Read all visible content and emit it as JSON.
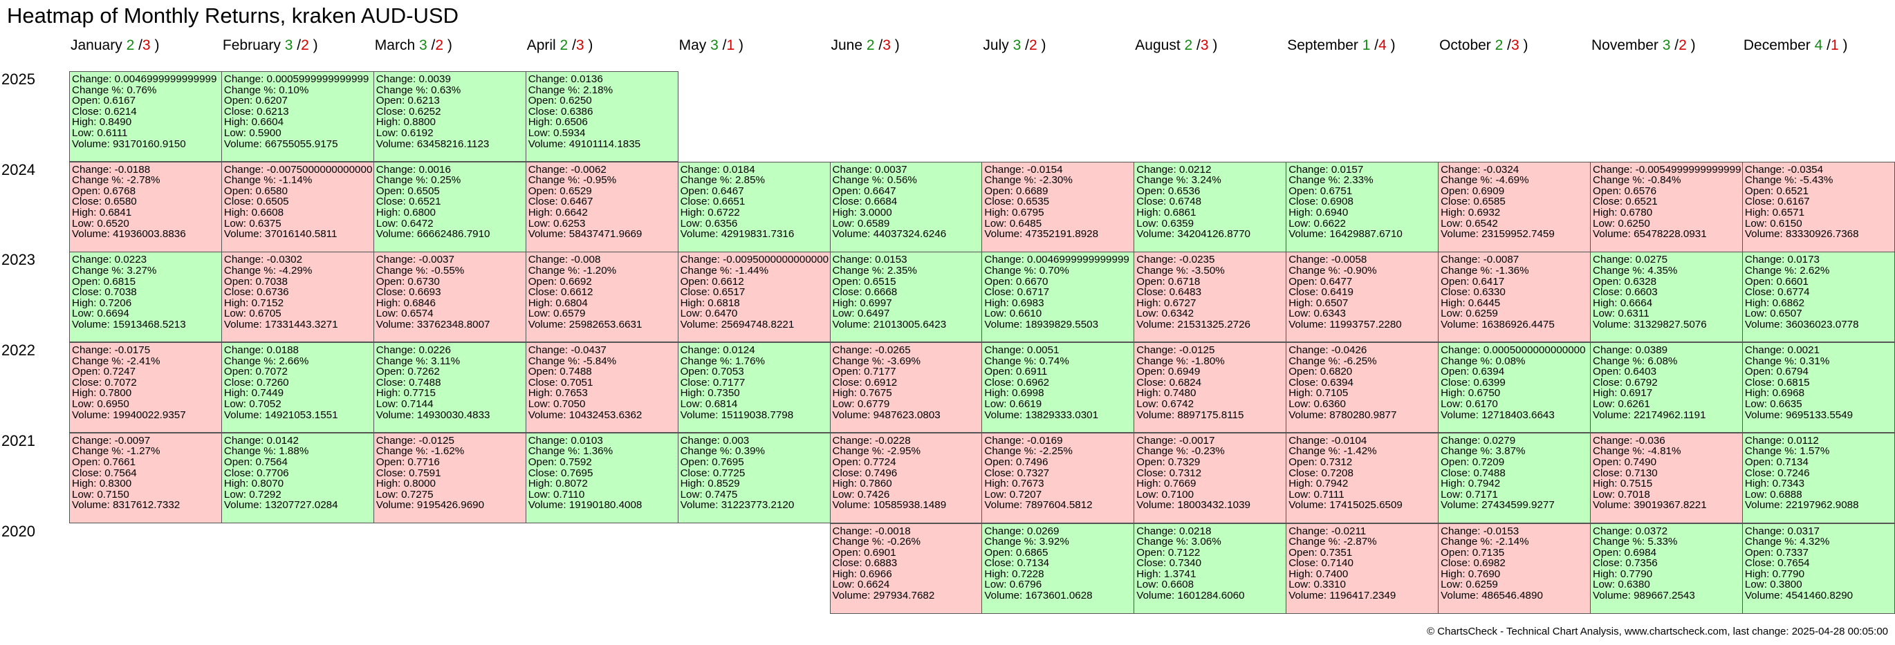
{
  "title": "Heatmap of Monthly Returns, kraken AUD-USD",
  "footer": "© ChartsCheck - Technical Chart Analysis, www.chartscheck.com, last change: 2025-04-28 00:05:00",
  "colors": {
    "up_bg": "#bfffbf",
    "down_bg": "#ffcccc",
    "up_text": "#138a13",
    "down_text": "#d60000"
  },
  "chart_data": {
    "type": "heatmap",
    "title": "Heatmap of Monthly Returns, kraken AUD-USD",
    "months": [
      {
        "name": "January",
        "up": "2",
        "down": "3"
      },
      {
        "name": "February",
        "up": "3",
        "down": "2"
      },
      {
        "name": "March",
        "up": "3",
        "down": "2"
      },
      {
        "name": "April",
        "up": "2",
        "down": "3"
      },
      {
        "name": "May",
        "up": "3",
        "down": "1"
      },
      {
        "name": "June",
        "up": "2",
        "down": "3"
      },
      {
        "name": "July",
        "up": "3",
        "down": "2"
      },
      {
        "name": "August",
        "up": "2",
        "down": "3"
      },
      {
        "name": "September",
        "up": "1",
        "down": "4"
      },
      {
        "name": "October",
        "up": "2",
        "down": "3"
      },
      {
        "name": "November",
        "up": "3",
        "down": "2"
      },
      {
        "name": "December",
        "up": "4",
        "down": "1"
      }
    ],
    "years": [
      {
        "year": "2025",
        "cells": [
          {
            "month": 0,
            "change": "0.0046999999999999",
            "pct": "0.76%",
            "open": "0.6167",
            "close": "0.6214",
            "high": "0.8490",
            "low": "0.6111",
            "volume": "93170160.9150"
          },
          {
            "month": 1,
            "change": "0.0005999999999999",
            "pct": "0.10%",
            "open": "0.6207",
            "close": "0.6213",
            "high": "0.6604",
            "low": "0.5900",
            "volume": "66755055.9175"
          },
          {
            "month": 2,
            "change": "0.0039",
            "pct": "0.63%",
            "open": "0.6213",
            "close": "0.6252",
            "high": "0.8800",
            "low": "0.6192",
            "volume": "63458216.1123"
          },
          {
            "month": 3,
            "change": "0.0136",
            "pct": "2.18%",
            "open": "0.6250",
            "close": "0.6386",
            "high": "0.6506",
            "low": "0.5934",
            "volume": "49101114.1835"
          }
        ]
      },
      {
        "year": "2024",
        "cells": [
          {
            "month": 0,
            "change": "-0.0188",
            "pct": "-2.78%",
            "open": "0.6768",
            "close": "0.6580",
            "high": "0.6841",
            "low": "0.6520",
            "volume": "41936003.8836"
          },
          {
            "month": 1,
            "change": "-0.0075000000000000",
            "pct": "-1.14%",
            "open": "0.6580",
            "close": "0.6505",
            "high": "0.6608",
            "low": "0.6375",
            "volume": "37016140.5811"
          },
          {
            "month": 2,
            "change": "0.0016",
            "pct": "0.25%",
            "open": "0.6505",
            "close": "0.6521",
            "high": "0.6800",
            "low": "0.6472",
            "volume": "66662486.7910"
          },
          {
            "month": 3,
            "change": "-0.0062",
            "pct": "-0.95%",
            "open": "0.6529",
            "close": "0.6467",
            "high": "0.6642",
            "low": "0.6253",
            "volume": "58437471.9669"
          },
          {
            "month": 4,
            "change": "0.0184",
            "pct": "2.85%",
            "open": "0.6467",
            "close": "0.6651",
            "high": "0.6722",
            "low": "0.6356",
            "volume": "42919831.7316"
          },
          {
            "month": 5,
            "change": "0.0037",
            "pct": "0.56%",
            "open": "0.6647",
            "close": "0.6684",
            "high": "3.0000",
            "low": "0.6589",
            "volume": "44037324.6246"
          },
          {
            "month": 6,
            "change": "-0.0154",
            "pct": "-2.30%",
            "open": "0.6689",
            "close": "0.6535",
            "high": "0.6795",
            "low": "0.6485",
            "volume": "47352191.8928"
          },
          {
            "month": 7,
            "change": "0.0212",
            "pct": "3.24%",
            "open": "0.6536",
            "close": "0.6748",
            "high": "0.6861",
            "low": "0.6359",
            "volume": "34204126.8770"
          },
          {
            "month": 8,
            "change": "0.0157",
            "pct": "2.33%",
            "open": "0.6751",
            "close": "0.6908",
            "high": "0.6940",
            "low": "0.6622",
            "volume": "16429887.6710"
          },
          {
            "month": 9,
            "change": "-0.0324",
            "pct": "-4.69%",
            "open": "0.6909",
            "close": "0.6585",
            "high": "0.6932",
            "low": "0.6542",
            "volume": "23159952.7459"
          },
          {
            "month": 10,
            "change": "-0.0054999999999999",
            "pct": "-0.84%",
            "open": "0.6576",
            "close": "0.6521",
            "high": "0.6780",
            "low": "0.6250",
            "volume": "65478228.0931"
          },
          {
            "month": 11,
            "change": "-0.0354",
            "pct": "-5.43%",
            "open": "0.6521",
            "close": "0.6167",
            "high": "0.6571",
            "low": "0.6150",
            "volume": "83330926.7368"
          }
        ]
      },
      {
        "year": "2023",
        "cells": [
          {
            "month": 0,
            "change": "0.0223",
            "pct": "3.27%",
            "open": "0.6815",
            "close": "0.7038",
            "high": "0.7206",
            "low": "0.6694",
            "volume": "15913468.5213"
          },
          {
            "month": 1,
            "change": "-0.0302",
            "pct": "-4.29%",
            "open": "0.7038",
            "close": "0.6736",
            "high": "0.7152",
            "low": "0.6705",
            "volume": "17331443.3271"
          },
          {
            "month": 2,
            "change": "-0.0037",
            "pct": "-0.55%",
            "open": "0.6730",
            "close": "0.6693",
            "high": "0.6846",
            "low": "0.6574",
            "volume": "33762348.8007"
          },
          {
            "month": 3,
            "change": "-0.008",
            "pct": "-1.20%",
            "open": "0.6692",
            "close": "0.6612",
            "high": "0.6804",
            "low": "0.6579",
            "volume": "25982653.6631"
          },
          {
            "month": 4,
            "change": "-0.0095000000000000",
            "pct": "-1.44%",
            "open": "0.6612",
            "close": "0.6517",
            "high": "0.6818",
            "low": "0.6470",
            "volume": "25694748.8221"
          },
          {
            "month": 5,
            "change": "0.0153",
            "pct": "2.35%",
            "open": "0.6515",
            "close": "0.6668",
            "high": "0.6997",
            "low": "0.6497",
            "volume": "21013005.6423"
          },
          {
            "month": 6,
            "change": "0.0046999999999999",
            "pct": "0.70%",
            "open": "0.6670",
            "close": "0.6717",
            "high": "0.6983",
            "low": "0.6610",
            "volume": "18939829.5503"
          },
          {
            "month": 7,
            "change": "-0.0235",
            "pct": "-3.50%",
            "open": "0.6718",
            "close": "0.6483",
            "high": "0.6727",
            "low": "0.6342",
            "volume": "21531325.2726"
          },
          {
            "month": 8,
            "change": "-0.0058",
            "pct": "-0.90%",
            "open": "0.6477",
            "close": "0.6419",
            "high": "0.6507",
            "low": "0.6343",
            "volume": "11993757.2280"
          },
          {
            "month": 9,
            "change": "-0.0087",
            "pct": "-1.36%",
            "open": "0.6417",
            "close": "0.6330",
            "high": "0.6445",
            "low": "0.6259",
            "volume": "16386926.4475"
          },
          {
            "month": 10,
            "change": "0.0275",
            "pct": "4.35%",
            "open": "0.6328",
            "close": "0.6603",
            "high": "0.6664",
            "low": "0.6311",
            "volume": "31329827.5076"
          },
          {
            "month": 11,
            "change": "0.0173",
            "pct": "2.62%",
            "open": "0.6601",
            "close": "0.6774",
            "high": "0.6862",
            "low": "0.6507",
            "volume": "36036023.0778"
          }
        ]
      },
      {
        "year": "2022",
        "cells": [
          {
            "month": 0,
            "change": "-0.0175",
            "pct": "-2.41%",
            "open": "0.7247",
            "close": "0.7072",
            "high": "0.7800",
            "low": "0.6950",
            "volume": "19940022.9357"
          },
          {
            "month": 1,
            "change": "0.0188",
            "pct": "2.66%",
            "open": "0.7072",
            "close": "0.7260",
            "high": "0.7449",
            "low": "0.7052",
            "volume": "14921053.1551"
          },
          {
            "month": 2,
            "change": "0.0226",
            "pct": "3.11%",
            "open": "0.7262",
            "close": "0.7488",
            "high": "0.7715",
            "low": "0.7144",
            "volume": "14930030.4833"
          },
          {
            "month": 3,
            "change": "-0.0437",
            "pct": "-5.84%",
            "open": "0.7488",
            "close": "0.7051",
            "high": "0.7653",
            "low": "0.7050",
            "volume": "10432453.6362"
          },
          {
            "month": 4,
            "change": "0.0124",
            "pct": "1.76%",
            "open": "0.7053",
            "close": "0.7177",
            "high": "0.7350",
            "low": "0.6814",
            "volume": "15119038.7798"
          },
          {
            "month": 5,
            "change": "-0.0265",
            "pct": "-3.69%",
            "open": "0.7177",
            "close": "0.6912",
            "high": "0.7675",
            "low": "0.6779",
            "volume": "9487623.0803"
          },
          {
            "month": 6,
            "change": "0.0051",
            "pct": "0.74%",
            "open": "0.6911",
            "close": "0.6962",
            "high": "0.6998",
            "low": "0.6619",
            "volume": "13829333.0301"
          },
          {
            "month": 7,
            "change": "-0.0125",
            "pct": "-1.80%",
            "open": "0.6949",
            "close": "0.6824",
            "high": "0.7480",
            "low": "0.6742",
            "volume": "8897175.8115"
          },
          {
            "month": 8,
            "change": "-0.0426",
            "pct": "-6.25%",
            "open": "0.6820",
            "close": "0.6394",
            "high": "0.7105",
            "low": "0.6360",
            "volume": "8780280.9877"
          },
          {
            "month": 9,
            "change": "0.0005000000000000",
            "pct": "0.08%",
            "open": "0.6394",
            "close": "0.6399",
            "high": "0.6750",
            "low": "0.6170",
            "volume": "12718403.6643"
          },
          {
            "month": 10,
            "change": "0.0389",
            "pct": "6.08%",
            "open": "0.6403",
            "close": "0.6792",
            "high": "0.6917",
            "low": "0.6261",
            "volume": "22174962.1191"
          },
          {
            "month": 11,
            "change": "0.0021",
            "pct": "0.31%",
            "open": "0.6794",
            "close": "0.6815",
            "high": "0.6968",
            "low": "0.6635",
            "volume": "9695133.5549"
          }
        ]
      },
      {
        "year": "2021",
        "cells": [
          {
            "month": 0,
            "change": "-0.0097",
            "pct": "-1.27%",
            "open": "0.7661",
            "close": "0.7564",
            "high": "0.8300",
            "low": "0.7150",
            "volume": "8317612.7332"
          },
          {
            "month": 1,
            "change": "0.0142",
            "pct": "1.88%",
            "open": "0.7564",
            "close": "0.7706",
            "high": "0.8070",
            "low": "0.7292",
            "volume": "13207727.0284"
          },
          {
            "month": 2,
            "change": "-0.0125",
            "pct": "-1.62%",
            "open": "0.7716",
            "close": "0.7591",
            "high": "0.8000",
            "low": "0.7275",
            "volume": "9195426.9690"
          },
          {
            "month": 3,
            "change": "0.0103",
            "pct": "1.36%",
            "open": "0.7592",
            "close": "0.7695",
            "high": "0.8072",
            "low": "0.7110",
            "volume": "19190180.4008"
          },
          {
            "month": 4,
            "change": "0.003",
            "pct": "0.39%",
            "open": "0.7695",
            "close": "0.7725",
            "high": "0.8529",
            "low": "0.7475",
            "volume": "31223773.2120"
          },
          {
            "month": 5,
            "change": "-0.0228",
            "pct": "-2.95%",
            "open": "0.7724",
            "close": "0.7496",
            "high": "0.7860",
            "low": "0.7426",
            "volume": "10585938.1489"
          },
          {
            "month": 6,
            "change": "-0.0169",
            "pct": "-2.25%",
            "open": "0.7496",
            "close": "0.7327",
            "high": "0.7673",
            "low": "0.7207",
            "volume": "7897604.5812"
          },
          {
            "month": 7,
            "change": "-0.0017",
            "pct": "-0.23%",
            "open": "0.7329",
            "close": "0.7312",
            "high": "0.7669",
            "low": "0.7100",
            "volume": "18003432.1039"
          },
          {
            "month": 8,
            "change": "-0.0104",
            "pct": "-1.42%",
            "open": "0.7312",
            "close": "0.7208",
            "high": "0.7942",
            "low": "0.7111",
            "volume": "17415025.6509"
          },
          {
            "month": 9,
            "change": "0.0279",
            "pct": "3.87%",
            "open": "0.7209",
            "close": "0.7488",
            "high": "0.7942",
            "low": "0.7171",
            "volume": "27434599.9277"
          },
          {
            "month": 10,
            "change": "-0.036",
            "pct": "-4.81%",
            "open": "0.7490",
            "close": "0.7130",
            "high": "0.7515",
            "low": "0.7018",
            "volume": "39019367.8221"
          },
          {
            "month": 11,
            "change": "0.0112",
            "pct": "1.57%",
            "open": "0.7134",
            "close": "0.7246",
            "high": "0.7343",
            "low": "0.6888",
            "volume": "22197962.9088"
          }
        ]
      },
      {
        "year": "2020",
        "cells": [
          {
            "month": 5,
            "change": "-0.0018",
            "pct": "-0.26%",
            "open": "0.6901",
            "close": "0.6883",
            "high": "0.6966",
            "low": "0.6624",
            "volume": "297934.7682"
          },
          {
            "month": 6,
            "change": "0.0269",
            "pct": "3.92%",
            "open": "0.6865",
            "close": "0.7134",
            "high": "0.7228",
            "low": "0.6796",
            "volume": "1673601.0628"
          },
          {
            "month": 7,
            "change": "0.0218",
            "pct": "3.06%",
            "open": "0.7122",
            "close": "0.7340",
            "high": "1.3741",
            "low": "0.6608",
            "volume": "1601284.6060"
          },
          {
            "month": 8,
            "change": "-0.0211",
            "pct": "-2.87%",
            "open": "0.7351",
            "close": "0.7140",
            "high": "0.7400",
            "low": "0.3310",
            "volume": "1196417.2349"
          },
          {
            "month": 9,
            "change": "-0.0153",
            "pct": "-2.14%",
            "open": "0.7135",
            "close": "0.6982",
            "high": "0.7690",
            "low": "0.6259",
            "volume": "486546.4890"
          },
          {
            "month": 10,
            "change": "0.0372",
            "pct": "5.33%",
            "open": "0.6984",
            "close": "0.7356",
            "high": "0.7790",
            "low": "0.6380",
            "volume": "989667.2543"
          },
          {
            "month": 11,
            "change": "0.0317",
            "pct": "4.32%",
            "open": "0.7337",
            "close": "0.7654",
            "high": "0.7790",
            "low": "0.3800",
            "volume": "4541460.8290"
          }
        ]
      }
    ]
  }
}
